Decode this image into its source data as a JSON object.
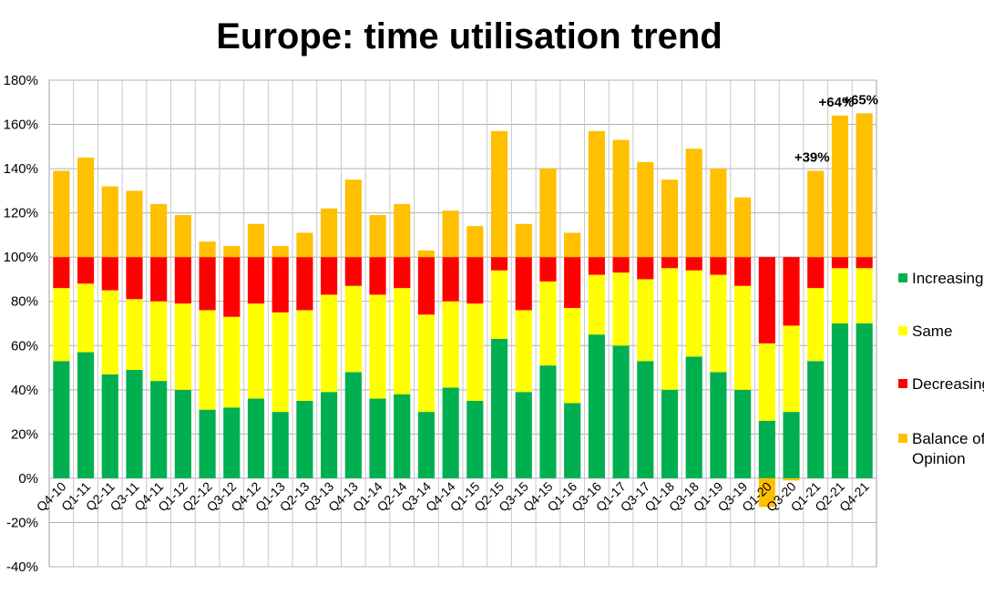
{
  "chart_data": {
    "type": "bar",
    "stacked": true,
    "title": "Europe: time utilisation trend",
    "xlabel": "",
    "ylabel": "",
    "ylim": [
      -40,
      180
    ],
    "y_ticks": [
      "180%",
      "160%",
      "140%",
      "120%",
      "100%",
      "80%",
      "60%",
      "40%",
      "20%",
      "0%",
      "-20%",
      "-40%"
    ],
    "grid": true,
    "legend_position": "right",
    "categories": [
      "Q4-10",
      "Q1-11",
      "Q2-11",
      "Q3-11",
      "Q4-11",
      "Q1-12",
      "Q2-12",
      "Q3-12",
      "Q4-12",
      "Q1-13",
      "Q2-13",
      "Q3-13",
      "Q4-13",
      "Q1-14",
      "Q2-14",
      "Q3-14",
      "Q4-14",
      "Q1-15",
      "Q2-15",
      "Q3-15",
      "Q4-15",
      "Q1-16",
      "Q3-16",
      "Q1-17",
      "Q3-17",
      "Q1-18",
      "Q3-18",
      "Q1-19",
      "Q3-19",
      "Q1-20",
      "Q3-20",
      "Q1-21",
      "Q2-21",
      "Q4-21"
    ],
    "series": [
      {
        "name": "Increasing",
        "color": "#00b050",
        "values": [
          53,
          57,
          47,
          49,
          44,
          40,
          31,
          32,
          36,
          30,
          35,
          39,
          48,
          36,
          38,
          30,
          41,
          35,
          63,
          39,
          51,
          34,
          65,
          60,
          53,
          40,
          55,
          48,
          40,
          26,
          30,
          53,
          70,
          70
        ]
      },
      {
        "name": "Same",
        "color": "#ffff00",
        "values": [
          33,
          31,
          38,
          32,
          36,
          39,
          45,
          41,
          43,
          45,
          41,
          44,
          39,
          47,
          48,
          44,
          39,
          44,
          31,
          37,
          38,
          43,
          27,
          33,
          37,
          55,
          39,
          44,
          47,
          35,
          39,
          33,
          25,
          25
        ]
      },
      {
        "name": "Decreasing",
        "color": "#ff0000",
        "values": [
          14,
          12,
          15,
          19,
          20,
          21,
          24,
          27,
          21,
          25,
          24,
          17,
          13,
          17,
          14,
          26,
          20,
          21,
          6,
          24,
          11,
          23,
          8,
          7,
          10,
          5,
          6,
          8,
          13,
          39,
          31,
          14,
          5,
          5
        ]
      },
      {
        "name": "Balance of Opinion",
        "color": "#ffc000",
        "values": [
          39,
          45,
          32,
          30,
          24,
          19,
          7,
          5,
          15,
          5,
          11,
          22,
          35,
          19,
          24,
          3,
          21,
          14,
          57,
          15,
          40,
          11,
          57,
          53,
          43,
          35,
          49,
          40,
          27,
          -13,
          -1,
          39,
          64,
          65
        ]
      }
    ],
    "annotations": [
      {
        "category": "Q1-21",
        "text": "+39%"
      },
      {
        "category": "Q2-21",
        "text": "+64%"
      },
      {
        "category": "Q4-21",
        "text": "+65%"
      }
    ]
  }
}
